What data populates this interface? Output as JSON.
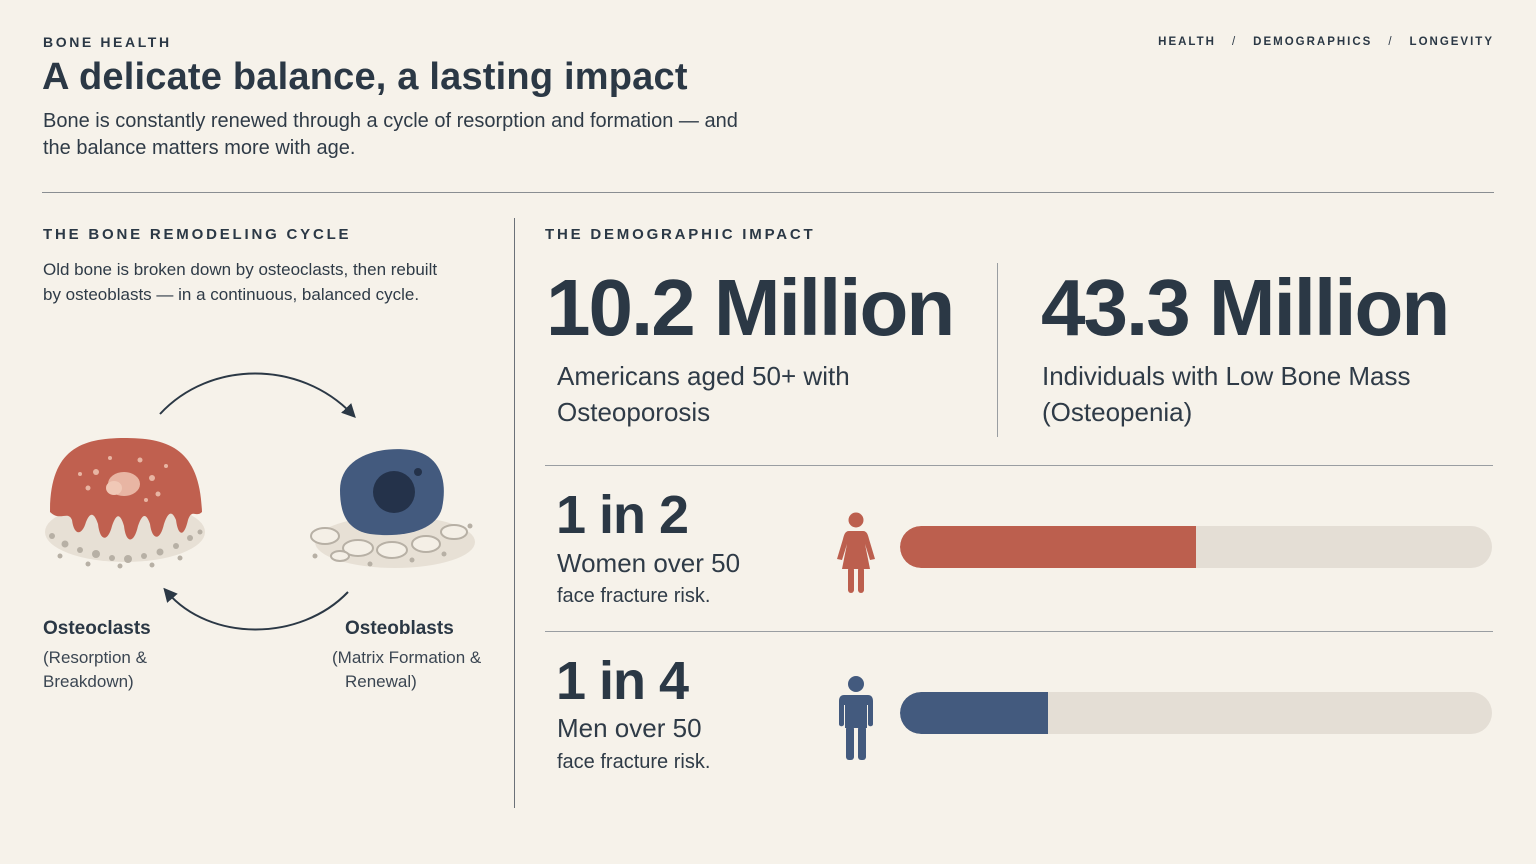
{
  "header": {
    "eyebrow": "BONE HEALTH",
    "title": "A delicate balance, a lasting impact",
    "subtitle": "Bone is constantly renewed through a cycle of resorption and formation — and the balance matters more with age."
  },
  "breadcrumb": [
    "HEALTH",
    "DEMOGRAPHICS",
    "LONGEVITY"
  ],
  "breadcrumb_separator": "/",
  "cycle": {
    "label": "THE BONE REMODELING CYCLE",
    "description": "Old bone is broken down by osteoclasts, then rebuilt by osteoblasts — in a continuous, balanced cycle.",
    "osteoclasts": {
      "name": "Osteoclasts",
      "sub_line1": "(Resorption &",
      "sub_line2": "Breakdown)",
      "icon": "osteoclast-cell-icon",
      "color": "#c0604f"
    },
    "osteoblasts": {
      "name": "Osteoblasts",
      "sub_line1": "(Matrix Formation &",
      "sub_line2": "Renewal)",
      "icon": "osteoblast-cell-icon",
      "color": "#435a7e"
    }
  },
  "impact": {
    "label": "THE DEMOGRAPHIC IMPACT",
    "stat1": {
      "value": "10.2 Million",
      "desc_line1": "Americans aged 50+ with",
      "desc_line2": "Osteoporosis"
    },
    "stat2": {
      "value": "43.3 Million",
      "desc_line1": "Individuals with Low Bone Mass",
      "desc_line2": "(Osteopenia)"
    },
    "women": {
      "ratio": "1 in 2",
      "label": "Women over 50",
      "sub": "face fracture risk.",
      "fraction": 0.5,
      "color": "#bc5f4e",
      "icon": "woman-icon"
    },
    "men": {
      "ratio": "1 in 4",
      "label": "Men over 50",
      "sub": "face fracture risk.",
      "fraction": 0.25,
      "color": "#435a7e",
      "icon": "man-icon"
    }
  },
  "colors": {
    "background": "#f6f2ea",
    "text": "#2b3845",
    "track": "#e4ded5"
  }
}
